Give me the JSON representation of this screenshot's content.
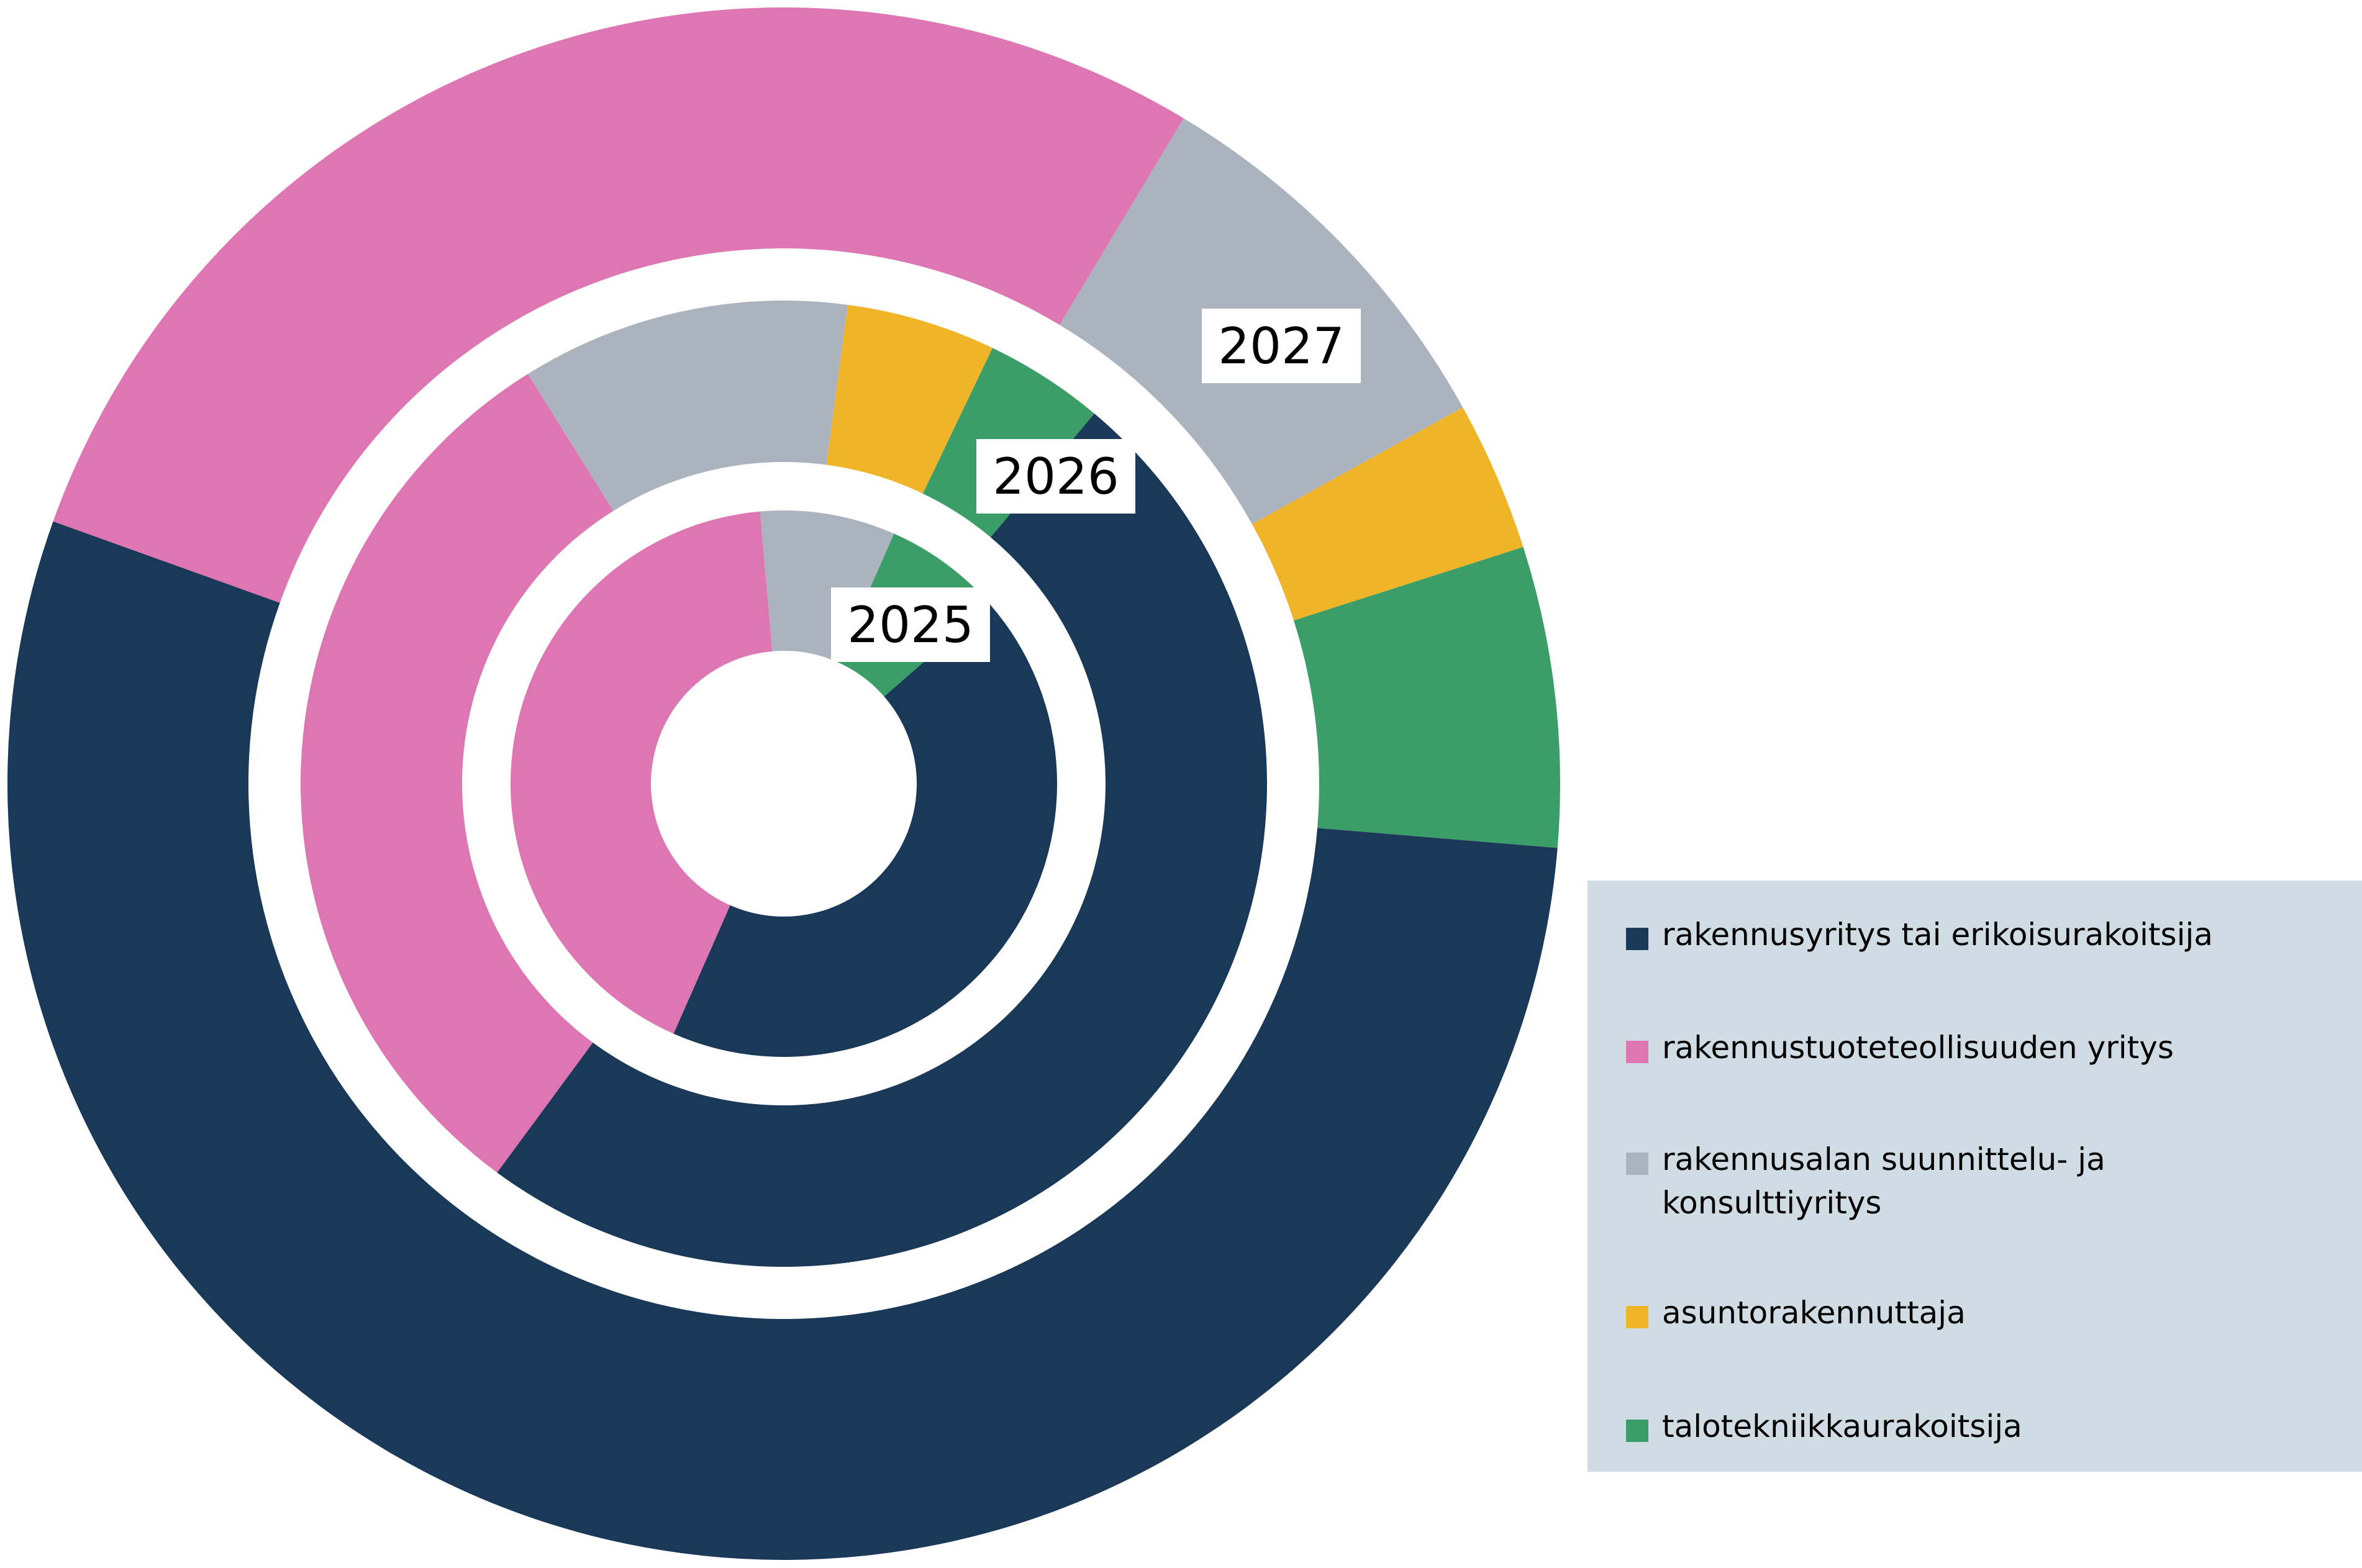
{
  "chart_data": {
    "type": "nested-donut",
    "title": "",
    "categories": [
      "rakennusyritys tai erikoisurakoitsija",
      "rakennustuoteteollisuuden yritys",
      "rakennusalan suunnittelu- ja konsulttiyritys",
      "asuntorakennuttaja",
      "talotekniikkaurakoitsija"
    ],
    "colors": [
      "#1a3858",
      "#de76b3",
      "#abb3be",
      "#f0b429",
      "#3b9d68"
    ],
    "series": [
      {
        "name": "2025",
        "values": [
          43,
          42,
          8,
          0,
          7
        ]
      },
      {
        "name": "2026",
        "values": [
          49,
          31,
          11,
          5,
          4
        ]
      },
      {
        "name": "2027",
        "values": [
          52,
          27,
          8,
          3,
          6
        ]
      }
    ],
    "legend_position": "right-bottom"
  },
  "legend": {
    "items": [
      "rakennusyritys tai erikoisurakoitsija",
      "rakennustuoteteollisuuden yritys",
      "rakennusalan suunnittelu- ja konsulttiyritys",
      "asuntorakennuttaja",
      "talotekniikkaurakoitsija"
    ]
  }
}
